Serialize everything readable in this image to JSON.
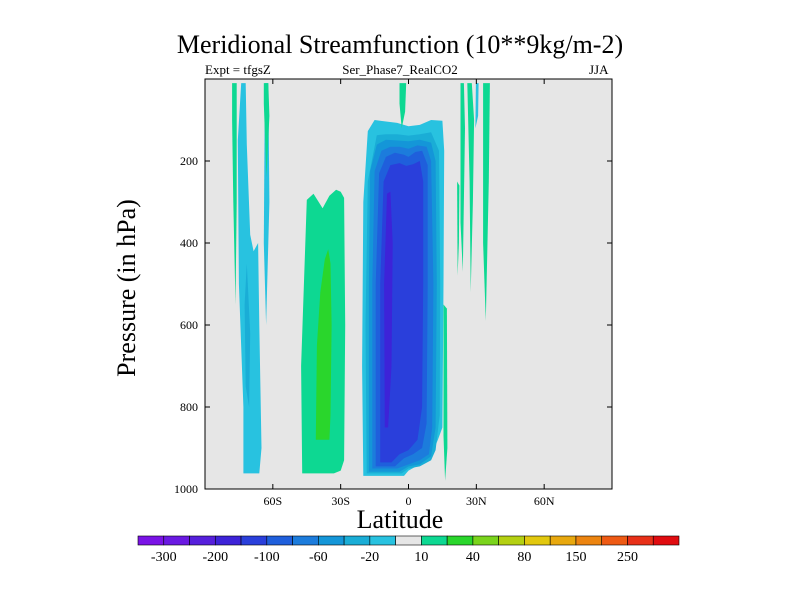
{
  "chart_data": {
    "type": "contour",
    "title": "Meridional Streamfunction (10**9kg/m-2)",
    "subtitle_left": "Expt = tfgsZ",
    "subtitle_center": "Ser_Phase7_RealCO2",
    "subtitle_right": "JJA",
    "xlabel": "Latitude",
    "ylabel": "Pressure (in hPa)",
    "xlim": [
      -90,
      90
    ],
    "ylim": [
      1000,
      0
    ],
    "xticks": [
      {
        "value": -60,
        "label": "60S"
      },
      {
        "value": -30,
        "label": "30S"
      },
      {
        "value": 0,
        "label": "0"
      },
      {
        "value": 30,
        "label": "30N"
      },
      {
        "value": 60,
        "label": "60N"
      }
    ],
    "yticks": [
      {
        "value": 200,
        "label": "200"
      },
      {
        "value": 400,
        "label": "400"
      },
      {
        "value": 600,
        "label": "600"
      },
      {
        "value": 800,
        "label": "800"
      },
      {
        "value": 1000,
        "label": "1000"
      }
    ],
    "background_color": "#e6e6e6",
    "colorbar": {
      "colors": [
        "#7a13e6",
        "#6a19e2",
        "#561fdc",
        "#3d23d8",
        "#2a3fdb",
        "#1f5fdc",
        "#1c7cdc",
        "#1496d8",
        "#1aadd6",
        "#28c2e0",
        "#e6e6e6",
        "#0dd892",
        "#2ad62c",
        "#7ad41c",
        "#b4d012",
        "#e2c80e",
        "#e8a80e",
        "#ec8410",
        "#ee5a14",
        "#e83018",
        "#e00c10"
      ],
      "labels": [
        {
          "index": 1,
          "label": "-300"
        },
        {
          "index": 3,
          "label": "-200"
        },
        {
          "index": 5,
          "label": "-100"
        },
        {
          "index": 7,
          "label": "-60"
        },
        {
          "index": 9,
          "label": "-20"
        },
        {
          "index": 11,
          "label": "10"
        },
        {
          "index": 13,
          "label": "40"
        },
        {
          "index": 15,
          "label": "80"
        },
        {
          "index": 17,
          "label": "150"
        },
        {
          "index": 19,
          "label": "250"
        }
      ]
    },
    "regions": [
      {
        "name": "southern-hadley-cell",
        "level": "-20",
        "color": "#28c2e0",
        "lat": [
          -2,
          -20,
          -20.5,
          -20,
          -18,
          -15,
          -5,
          0,
          5,
          10,
          15,
          15.8,
          15.5,
          15,
          13,
          10,
          5,
          0,
          -2
        ],
        "p": [
          968,
          968,
          700,
          300,
          127,
          100,
          107,
          115,
          112,
          100,
          102,
          175,
          500,
          850,
          880,
          920,
          940,
          955,
          968
        ]
      },
      {
        "name": "southern-hadley-cell",
        "level": "-60",
        "color": "#1aadd6",
        "lat": [
          -3,
          -18.5,
          -19,
          -18,
          -14,
          -10,
          -5,
          0,
          5,
          10,
          13.5,
          14,
          13.8,
          12,
          10,
          5,
          0,
          -3
        ],
        "p": [
          962,
          962,
          600,
          250,
          137,
          135,
          135,
          138,
          135,
          130,
          175,
          500,
          820,
          905,
          930,
          945,
          950,
          962
        ]
      },
      {
        "name": "southern-hadley-cell",
        "level": "-100",
        "color": "#1496d8",
        "lat": [
          -4,
          -17.5,
          -17.5,
          -17,
          -14,
          -10,
          -5,
          0,
          5,
          10,
          12,
          12.5,
          12,
          10,
          5,
          0,
          -4
        ],
        "p": [
          958,
          958,
          500,
          225,
          160,
          148,
          150,
          152,
          148,
          155,
          200,
          500,
          850,
          920,
          940,
          945,
          958
        ]
      },
      {
        "name": "southern-hadley-cell",
        "level": "-150",
        "color": "#1c7cdc",
        "lat": [
          -5,
          -16,
          -16,
          -15,
          -12,
          -8,
          -4,
          0,
          4,
          8,
          10,
          11,
          10.5,
          9,
          5,
          0,
          -5
        ],
        "p": [
          950,
          950,
          500,
          225,
          175,
          165,
          165,
          170,
          162,
          165,
          200,
          500,
          850,
          915,
          930,
          940,
          950
        ]
      },
      {
        "name": "southern-hadley-cell",
        "level": "-200",
        "color": "#1f5fdc",
        "lat": [
          -6,
          -14.5,
          -14.5,
          -13,
          -10,
          -6,
          -2,
          0,
          3,
          6,
          8.5,
          8.5,
          8,
          6,
          2,
          -2,
          -6
        ],
        "p": [
          945,
          945,
          500,
          230,
          190,
          180,
          185,
          190,
          178,
          175,
          210,
          500,
          840,
          900,
          915,
          925,
          945
        ]
      },
      {
        "name": "southern-hadley-cell",
        "level": "-250",
        "color": "#2a3fdb",
        "lat": [
          -7.5,
          -12.5,
          -12.5,
          -11,
          -8,
          -4,
          -1,
          2,
          5,
          6.5,
          6.5,
          6,
          4,
          0,
          -4,
          -7.5
        ],
        "p": [
          935,
          935,
          500,
          250,
          210,
          205,
          212,
          208,
          200,
          250,
          500,
          800,
          880,
          905,
          915,
          935
        ]
      },
      {
        "name": "southern-hadley-cell",
        "level": "-300",
        "color": "#3d23d8",
        "lat": [
          -9,
          -10.5,
          -10.8,
          -9.5,
          -8,
          -7,
          -7.5,
          -9
        ],
        "p": [
          850,
          850,
          500,
          280,
          275,
          400,
          700,
          850
        ]
      },
      {
        "name": "southern-ferrel-cell",
        "level": "10",
        "color": "#0dd892",
        "lat": [
          -33,
          -47,
          -47.5,
          -45,
          -42,
          -38,
          -35,
          -32,
          -30,
          -28.5,
          -28,
          -28.5,
          -30,
          -33
        ],
        "p": [
          962,
          962,
          700,
          295,
          280,
          315,
          285,
          270,
          275,
          290,
          600,
          930,
          955,
          962
        ]
      },
      {
        "name": "southern-ferrel-cell",
        "level": "40",
        "color": "#2ad62c",
        "lat": [
          -35,
          -41,
          -40.5,
          -39,
          -37,
          -35.5,
          -34.5,
          -34,
          -34.5,
          -35
        ],
        "p": [
          880,
          880,
          650,
          520,
          440,
          415,
          450,
          600,
          820,
          880
        ]
      },
      {
        "name": "polar-band",
        "level": "-20",
        "color": "#28c2e0",
        "lat": [
          -66,
          -73,
          -73,
          -75,
          -75.5,
          -74,
          -72,
          -71.5,
          -70,
          -68.5,
          -66.5,
          -66,
          -65,
          -66
        ],
        "p": [
          962,
          962,
          800,
          500,
          150,
          10,
          10,
          160,
          380,
          420,
          400,
          600,
          900,
          962
        ]
      },
      {
        "name": "polar-band",
        "level": "-20",
        "color": "#28c2e0",
        "lat": [
          -63,
          -64,
          -63.5,
          -62,
          -61.5,
          -63
        ],
        "p": [
          600,
          400,
          10,
          10,
          300,
          600
        ]
      },
      {
        "name": "polar-band",
        "level": "-60",
        "color": "#1aadd6",
        "lat": [
          -70.5,
          -72,
          -72.5,
          -71.5,
          -70,
          -70.5
        ],
        "p": [
          800,
          750,
          550,
          450,
          620,
          800
        ]
      },
      {
        "name": "polar-band",
        "level": "10",
        "color": "#0dd892",
        "lat": [
          -76,
          -78,
          -78,
          -77.5,
          -76.5,
          -76,
          -76
        ],
        "p": [
          10,
          10,
          100,
          300,
          550,
          300,
          10
        ]
      },
      {
        "name": "polar-band",
        "level": "10",
        "color": "#0dd892",
        "lat": [
          -64,
          -62,
          -61.5,
          -62.8,
          -64
        ],
        "p": [
          10,
          10,
          90,
          240,
          60
        ]
      },
      {
        "name": "northern-bands",
        "level": "10",
        "color": "#0dd892",
        "lat": [
          -4,
          -1,
          -1.5,
          -3,
          -4
        ],
        "p": [
          10,
          10,
          80,
          120,
          60
        ]
      },
      {
        "name": "northern-bands",
        "level": "10",
        "color": "#0dd892",
        "lat": [
          23,
          24.5,
          25,
          24,
          23,
          23
        ],
        "p": [
          10,
          10,
          120,
          470,
          350,
          10
        ]
      },
      {
        "name": "northern-bands",
        "level": "10",
        "color": "#0dd892",
        "lat": [
          26,
          28,
          29,
          28.5,
          27.5,
          27,
          26
        ],
        "p": [
          10,
          10,
          100,
          300,
          520,
          250,
          10
        ]
      },
      {
        "name": "northern-bands",
        "level": "10",
        "color": "#0dd892",
        "lat": [
          33,
          36,
          35.5,
          34.2,
          33,
          33
        ],
        "p": [
          10,
          10,
          250,
          590,
          400,
          10
        ]
      },
      {
        "name": "northern-bands",
        "level": "-20",
        "color": "#28c2e0",
        "lat": [
          29.8,
          31,
          30.8,
          29.6,
          29.8
        ],
        "p": [
          10,
          10,
          90,
          120,
          10
        ]
      },
      {
        "name": "northern-bands",
        "level": "10",
        "color": "#0dd892",
        "lat": [
          21.5,
          22.5,
          22.3,
          21.7,
          21.5
        ],
        "p": [
          250,
          260,
          400,
          480,
          250
        ]
      },
      {
        "name": "northern-bands",
        "level": "10",
        "color": "#0dd892",
        "lat": [
          15.5,
          17,
          17.2,
          16.2,
          15.5,
          15.5
        ],
        "p": [
          550,
          560,
          900,
          980,
          870,
          550
        ]
      }
    ]
  }
}
